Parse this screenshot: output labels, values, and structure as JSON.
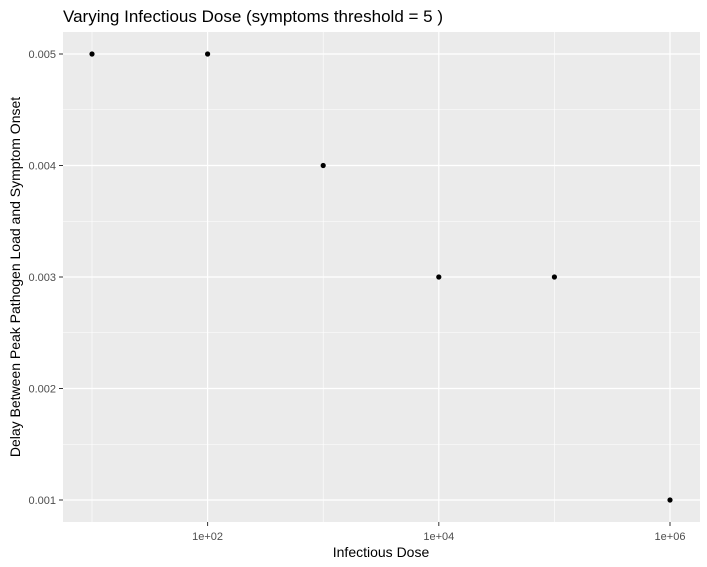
{
  "chart_data": {
    "type": "scatter",
    "title": "Varying Infectious Dose  (symptoms threshold =  5 )",
    "xlabel": "Infectious Dose",
    "ylabel": "Delay Between Peak Pathogen Load and Symptom Onset",
    "x_scale": "log10",
    "xlim": [
      10,
      1000000
    ],
    "ylim": [
      0.001,
      0.005
    ],
    "x_ticks": [
      {
        "value": 100,
        "label": "1e+02"
      },
      {
        "value": 10000,
        "label": "1e+04"
      },
      {
        "value": 1000000,
        "label": "1e+06"
      }
    ],
    "y_ticks": [
      {
        "value": 0.001,
        "label": "0.001"
      },
      {
        "value": 0.002,
        "label": "0.002"
      },
      {
        "value": 0.003,
        "label": "0.003"
      },
      {
        "value": 0.004,
        "label": "0.004"
      },
      {
        "value": 0.005,
        "label": "0.005"
      }
    ],
    "points": [
      {
        "x": 10,
        "y": 0.005
      },
      {
        "x": 100,
        "y": 0.005
      },
      {
        "x": 1000,
        "y": 0.004
      },
      {
        "x": 10000,
        "y": 0.003
      },
      {
        "x": 100000,
        "y": 0.003
      },
      {
        "x": 1000000,
        "y": 0.001
      }
    ],
    "grid": true,
    "legend": "none",
    "colors": {
      "panel_background": "#ebebeb",
      "grid_major": "#ffffff",
      "point": "#000000",
      "tick_text": "#4d4d4d"
    }
  }
}
